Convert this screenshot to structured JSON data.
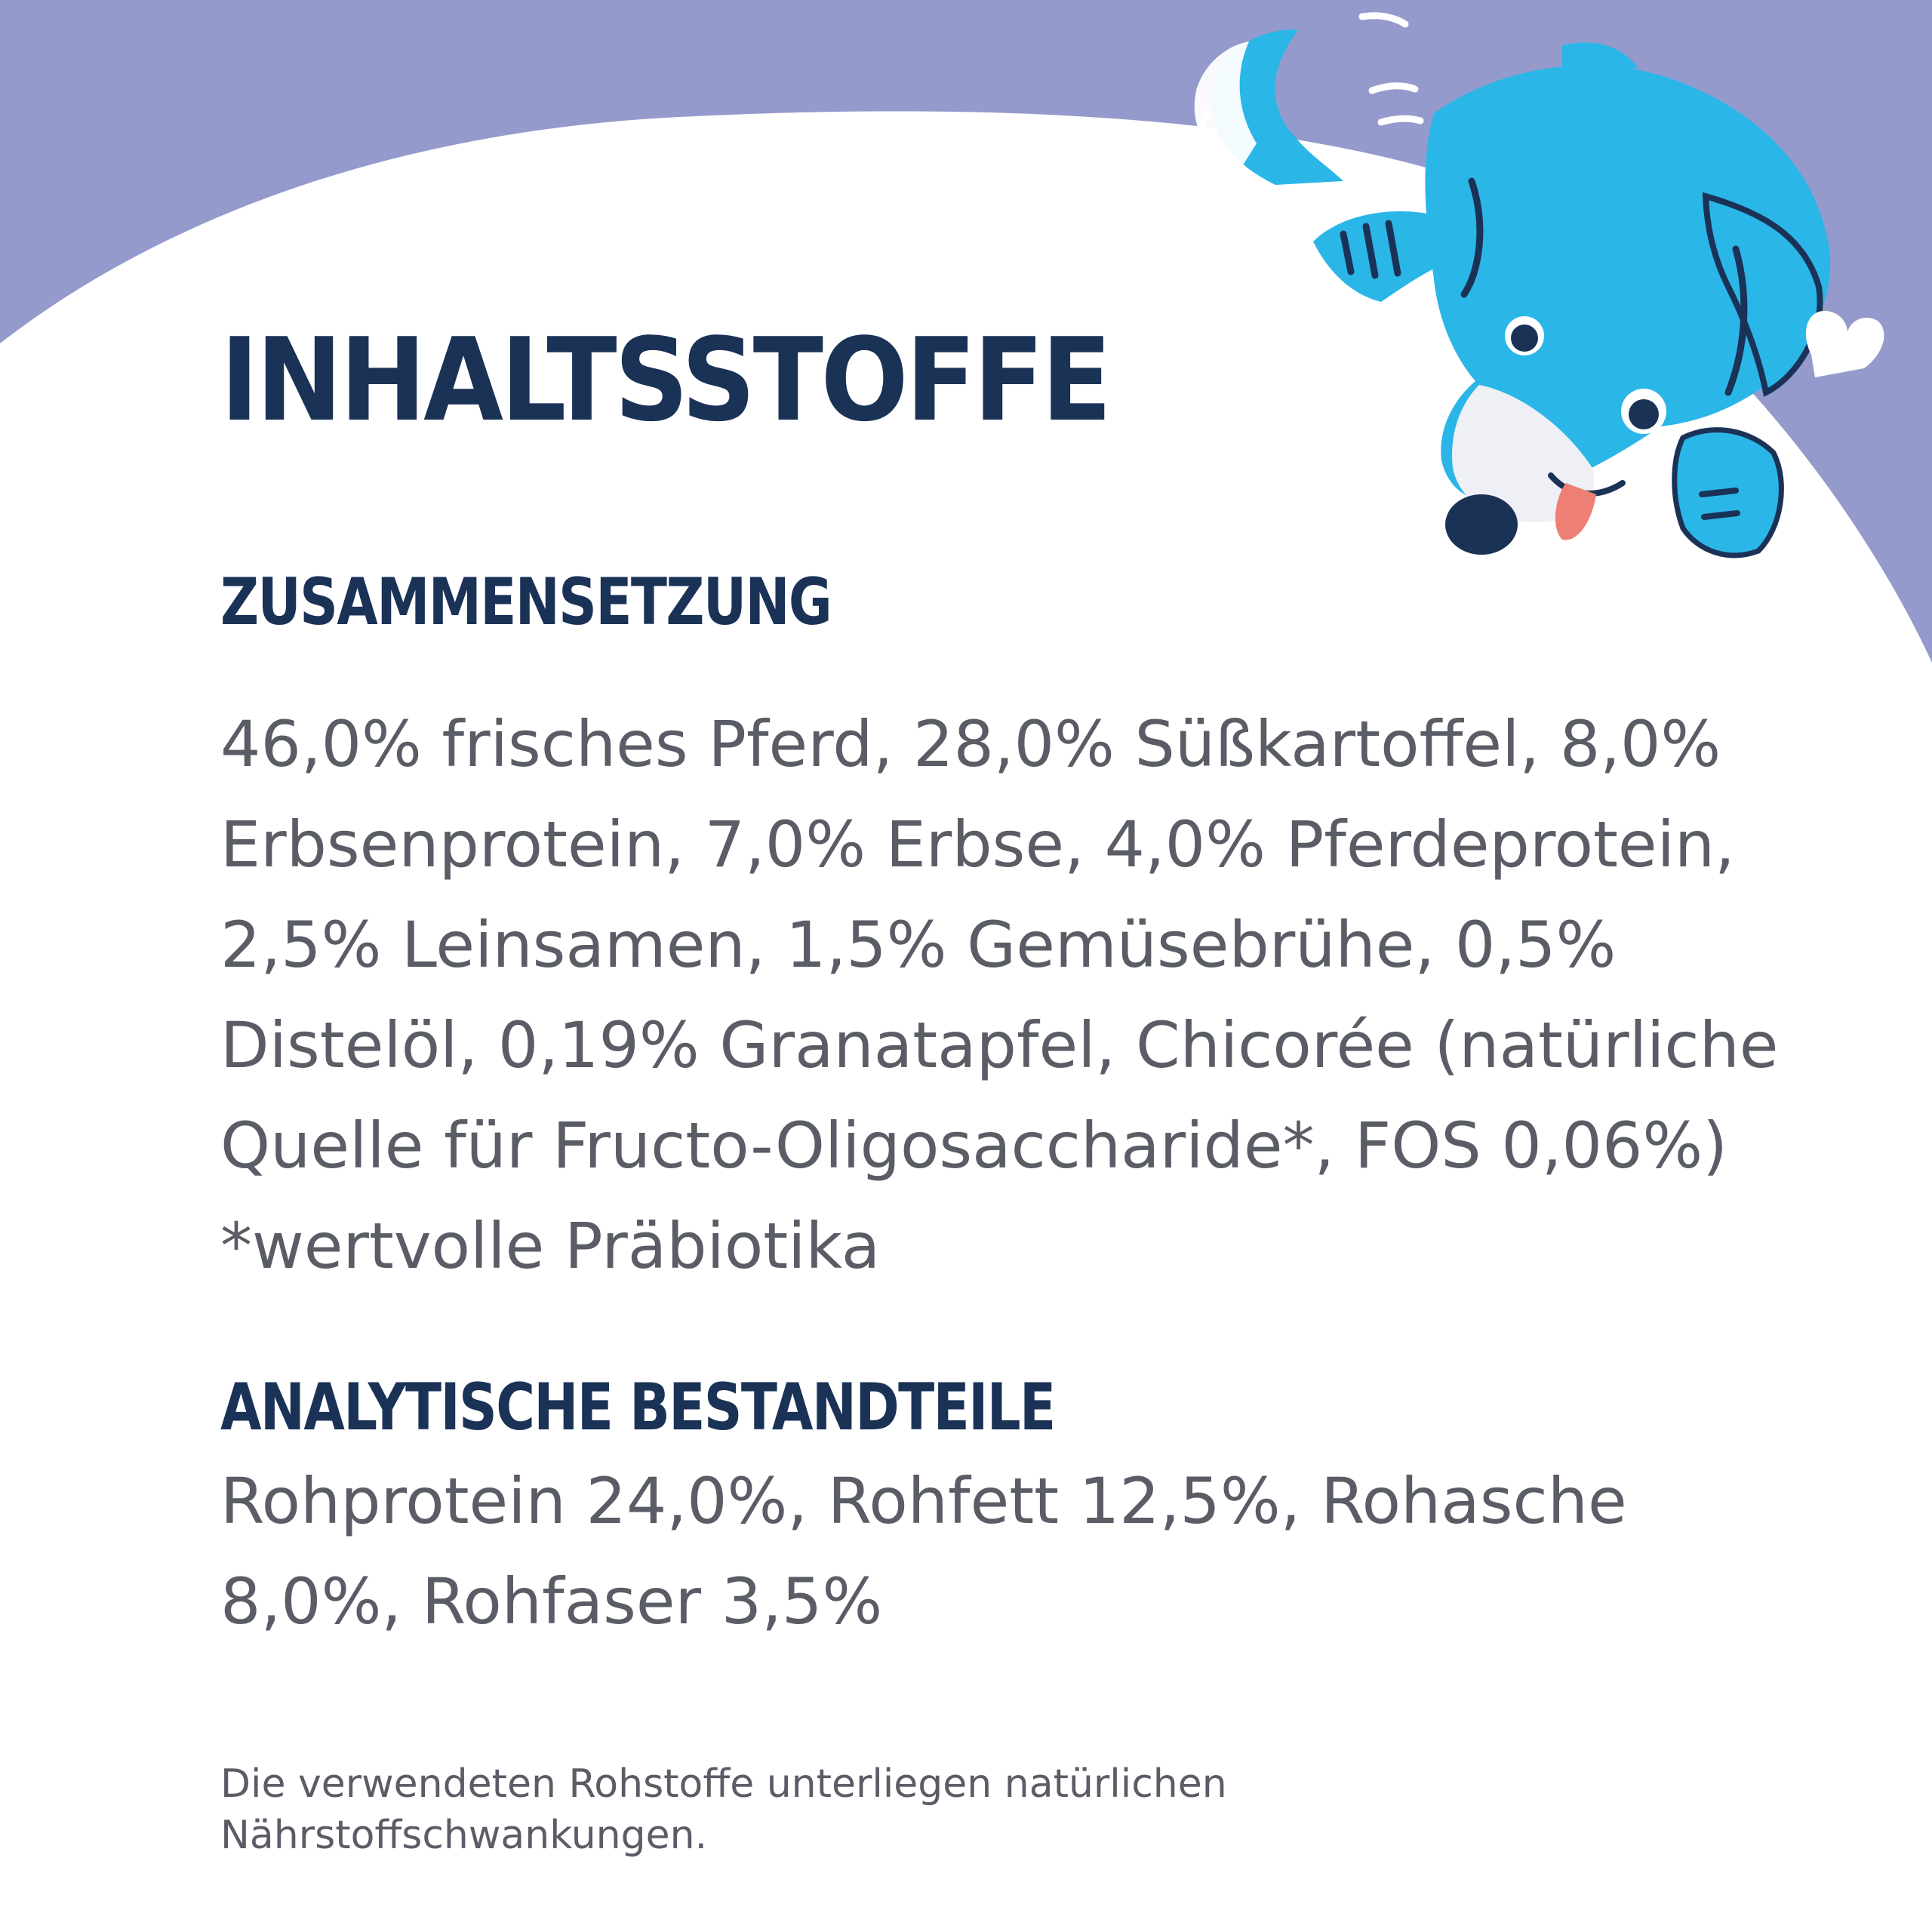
{
  "title": "INHALTSSTOFFE",
  "sections": [
    {
      "heading": "ZUSAMMENSETZUNG",
      "lines": [
        "46,0% frisches Pferd, 28,0% Süßkartoffel, 8,0%",
        "Erbsenprotein, 7,0% Erbse, 4,0% Pferdeprotein,",
        "2,5% Leinsamen, 1,5% Gemüsebrühe, 0,5%",
        "Distelöl, 0,19% Granatapfel, Chicorée (natürliche",
        "Quelle für Fructo-Oligosaccharide*, FOS 0,06%)",
        "*wertvolle Präbiotika"
      ]
    },
    {
      "heading": "ANALYTISCHE BESTANDTEILE",
      "lines": [
        "Rohprotein 24,0%, Rohfett 12,5%, Rohasche",
        "8,0%, Rohfaser 3,5%"
      ]
    }
  ],
  "footnote": [
    "Die verwendeten Rohstoffe unterliegen natürlichen",
    "Nährstoffschwankungen."
  ],
  "illustration": {
    "icon": "dog-mascot-icon",
    "colors": {
      "background_band": "#959acc",
      "dog_blue": "#2bb6e8",
      "dog_outline": "#1b3257",
      "tongue": "#ee7f75",
      "muzzle": "#eef0f5"
    }
  },
  "colors": {
    "heading": "#1b3257",
    "body_text": "#5a5c66",
    "page_background": "#ffffff"
  }
}
